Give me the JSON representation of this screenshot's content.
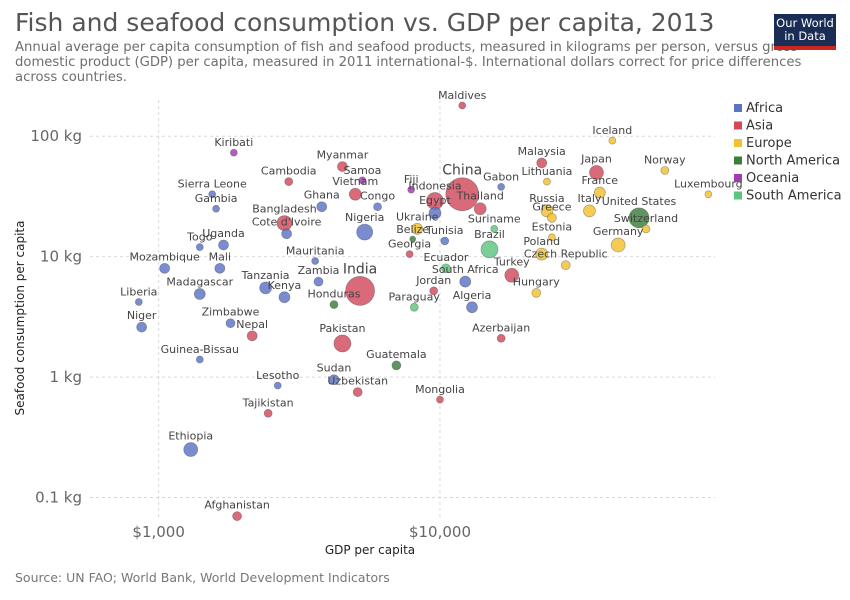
{
  "header": {
    "title": "Fish and seafood consumption vs. GDP per capita, 2013",
    "subtitle": "Annual average per capita consumption of fish and seafood products, measured in kilograms per person, versus gross domestic product (GDP) per capita, measured in 2011 international-$. International dollars correct for price differences across countries.",
    "logo_line1": "Our World",
    "logo_line2": "in Data"
  },
  "footer": {
    "source": "Source: UN FAO; World Bank, World Development Indicators"
  },
  "colors": {
    "Africa": "#5b73c4",
    "Asia": "#d1495b",
    "Europe": "#f2c12e",
    "North America": "#3c7d3e",
    "Oceania": "#a23bb0",
    "South America": "#5cc47d"
  },
  "chart_data": {
    "type": "scatter",
    "xlabel": "GDP per capita",
    "ylabel": "Seafood consumption per capita",
    "xscale": "log",
    "yscale": "log",
    "xlim": [
      570,
      95000
    ],
    "ylim": [
      0.065,
      200
    ],
    "xticks": [
      1000,
      10000
    ],
    "xtick_labels": [
      "$1,000",
      "$10,000"
    ],
    "yticks": [
      0.1,
      1,
      10,
      100
    ],
    "ytick_labels": [
      "0.1 kg",
      "1 kg",
      "10 kg",
      "100 kg"
    ],
    "grid": true,
    "legend_position": "right",
    "legend": [
      "Africa",
      "Asia",
      "Europe",
      "North America",
      "Oceania",
      "South America"
    ],
    "points": [
      {
        "name": "Maldives",
        "region": "Asia",
        "x": 12000,
        "y": 180,
        "size": 4
      },
      {
        "name": "Iceland",
        "region": "Europe",
        "x": 41000,
        "y": 92,
        "size": 4
      },
      {
        "name": "Kiribati",
        "region": "Oceania",
        "x": 1850,
        "y": 73,
        "size": 4
      },
      {
        "name": "Myanmar",
        "region": "Asia",
        "x": 4500,
        "y": 56,
        "size": 7
      },
      {
        "name": "Malaysia",
        "region": "Asia",
        "x": 23000,
        "y": 60,
        "size": 7
      },
      {
        "name": "Japan",
        "region": "Asia",
        "x": 36000,
        "y": 50,
        "size": 11
      },
      {
        "name": "Norway",
        "region": "Europe",
        "x": 63000,
        "y": 52,
        "size": 5
      },
      {
        "name": "Samoa",
        "region": "Oceania",
        "x": 5300,
        "y": 43,
        "size": 4
      },
      {
        "name": "Cambodia",
        "region": "Asia",
        "x": 2900,
        "y": 42,
        "size": 5
      },
      {
        "name": "Sierra Leone",
        "region": "Africa",
        "x": 1550,
        "y": 33,
        "size": 4
      },
      {
        "name": "Vietnam",
        "region": "Asia",
        "x": 5000,
        "y": 33,
        "size": 9
      },
      {
        "name": "Fiji",
        "region": "Oceania",
        "x": 7900,
        "y": 36,
        "size": 4
      },
      {
        "name": "Lithuania",
        "region": "Europe",
        "x": 24000,
        "y": 42,
        "size": 4
      },
      {
        "name": "Luxembourg",
        "region": "Europe",
        "x": 90000,
        "y": 33,
        "size": 4
      },
      {
        "name": "China",
        "region": "Asia",
        "x": 12000,
        "y": 33,
        "size": 30
      },
      {
        "name": "Gabon",
        "region": "Africa",
        "x": 16500,
        "y": 38,
        "size": 4
      },
      {
        "name": "France",
        "region": "Europe",
        "x": 37000,
        "y": 34,
        "size": 8
      },
      {
        "name": "Gambia",
        "region": "Africa",
        "x": 1600,
        "y": 25,
        "size": 4
      },
      {
        "name": "Ghana",
        "region": "Africa",
        "x": 3800,
        "y": 26,
        "size": 7
      },
      {
        "name": "Congo",
        "region": "Africa",
        "x": 6000,
        "y": 26,
        "size": 5
      },
      {
        "name": "Indonesia",
        "region": "Asia",
        "x": 9600,
        "y": 29,
        "size": 14
      },
      {
        "name": "Egypt",
        "region": "Africa",
        "x": 9600,
        "y": 23,
        "size": 9
      },
      {
        "name": "Thailand",
        "region": "Asia",
        "x": 13900,
        "y": 25,
        "size": 9
      },
      {
        "name": "Russia",
        "region": "Europe",
        "x": 24000,
        "y": 24,
        "size": 9
      },
      {
        "name": "Italy",
        "region": "Europe",
        "x": 34000,
        "y": 24,
        "size": 9
      },
      {
        "name": "United States",
        "region": "North America",
        "x": 51000,
        "y": 21,
        "size": 17
      },
      {
        "name": "Greece",
        "region": "Europe",
        "x": 25000,
        "y": 21,
        "size": 6
      },
      {
        "name": "Bangladesh",
        "region": "Asia",
        "x": 2800,
        "y": 19,
        "size": 12
      },
      {
        "name": "Nigeria",
        "region": "Africa",
        "x": 5400,
        "y": 16,
        "size": 13
      },
      {
        "name": "Ukraine",
        "region": "Europe",
        "x": 8300,
        "y": 17,
        "size": 8
      },
      {
        "name": "Suriname",
        "region": "South America",
        "x": 15600,
        "y": 17,
        "size": 4
      },
      {
        "name": "Switzerland",
        "region": "Europe",
        "x": 54000,
        "y": 17,
        "size": 5
      },
      {
        "name": "Cote d'Ivoire",
        "region": "Africa",
        "x": 2850,
        "y": 15.5,
        "size": 7
      },
      {
        "name": "Belize",
        "region": "North America",
        "x": 8000,
        "y": 14,
        "size": 3
      },
      {
        "name": "Tunisia",
        "region": "Africa",
        "x": 10400,
        "y": 13.5,
        "size": 5
      },
      {
        "name": "Estonia",
        "region": "Europe",
        "x": 25000,
        "y": 14.5,
        "size": 4
      },
      {
        "name": "Germany",
        "region": "Europe",
        "x": 43000,
        "y": 12.5,
        "size": 11
      },
      {
        "name": "Togo",
        "region": "Africa",
        "x": 1400,
        "y": 12,
        "size": 4
      },
      {
        "name": "Uganda",
        "region": "Africa",
        "x": 1700,
        "y": 12.5,
        "size": 7
      },
      {
        "name": "Brazil",
        "region": "South America",
        "x": 15000,
        "y": 11.5,
        "size": 14
      },
      {
        "name": "Poland",
        "region": "Europe",
        "x": 23000,
        "y": 10.5,
        "size": 9
      },
      {
        "name": "Georgia",
        "region": "Asia",
        "x": 7800,
        "y": 10.5,
        "size": 4
      },
      {
        "name": "Mauritania",
        "region": "Africa",
        "x": 3600,
        "y": 9.2,
        "size": 4
      },
      {
        "name": "Czech Republic",
        "region": "Europe",
        "x": 28000,
        "y": 8.5,
        "size": 6
      },
      {
        "name": "Mozambique",
        "region": "Africa",
        "x": 1050,
        "y": 8,
        "size": 7
      },
      {
        "name": "Mali",
        "region": "Africa",
        "x": 1650,
        "y": 8,
        "size": 7
      },
      {
        "name": "India",
        "region": "Asia",
        "x": 5200,
        "y": 5.2,
        "size": 26
      },
      {
        "name": "Ecuador",
        "region": "South America",
        "x": 10500,
        "y": 8,
        "size": 6
      },
      {
        "name": "South Africa",
        "region": "Africa",
        "x": 12300,
        "y": 6.2,
        "size": 8
      },
      {
        "name": "Turkey",
        "region": "Asia",
        "x": 18000,
        "y": 7,
        "size": 11
      },
      {
        "name": "Zambia",
        "region": "Africa",
        "x": 3700,
        "y": 6.2,
        "size": 6
      },
      {
        "name": "Tanzania",
        "region": "Africa",
        "x": 2400,
        "y": 5.5,
        "size": 9
      },
      {
        "name": "Madagascar",
        "region": "Africa",
        "x": 1400,
        "y": 4.9,
        "size": 8
      },
      {
        "name": "Kenya",
        "region": "Africa",
        "x": 2800,
        "y": 4.6,
        "size": 8
      },
      {
        "name": "Jordan",
        "region": "Asia",
        "x": 9500,
        "y": 5.2,
        "size": 5
      },
      {
        "name": "Hungary",
        "region": "Europe",
        "x": 22000,
        "y": 5,
        "size": 6
      },
      {
        "name": "Liberia",
        "region": "Africa",
        "x": 850,
        "y": 4.2,
        "size": 4
      },
      {
        "name": "Honduras",
        "region": "North America",
        "x": 4200,
        "y": 4,
        "size": 5
      },
      {
        "name": "Paraguay",
        "region": "South America",
        "x": 8100,
        "y": 3.8,
        "size": 5
      },
      {
        "name": "Algeria",
        "region": "Africa",
        "x": 13000,
        "y": 3.8,
        "size": 8
      },
      {
        "name": "Zimbabwe",
        "region": "Africa",
        "x": 1800,
        "y": 2.8,
        "size": 6
      },
      {
        "name": "Niger",
        "region": "Africa",
        "x": 870,
        "y": 2.6,
        "size": 7
      },
      {
        "name": "Nepal",
        "region": "Asia",
        "x": 2150,
        "y": 2.2,
        "size": 7
      },
      {
        "name": "Pakistan",
        "region": "Asia",
        "x": 4500,
        "y": 1.9,
        "size": 14
      },
      {
        "name": "Azerbaijan",
        "region": "Asia",
        "x": 16500,
        "y": 2.1,
        "size": 5
      },
      {
        "name": "Guinea-Bissau",
        "region": "Africa",
        "x": 1400,
        "y": 1.4,
        "size": 4
      },
      {
        "name": "Guatemala",
        "region": "North America",
        "x": 7000,
        "y": 1.25,
        "size": 6
      },
      {
        "name": "Sudan",
        "region": "Africa",
        "x": 4200,
        "y": 0.95,
        "size": 7
      },
      {
        "name": "Lesotho",
        "region": "Africa",
        "x": 2650,
        "y": 0.85,
        "size": 4
      },
      {
        "name": "Uzbekistan",
        "region": "Asia",
        "x": 5100,
        "y": 0.75,
        "size": 6
      },
      {
        "name": "Mongolia",
        "region": "Asia",
        "x": 10000,
        "y": 0.65,
        "size": 4
      },
      {
        "name": "Tajikistan",
        "region": "Asia",
        "x": 2450,
        "y": 0.5,
        "size": 5
      },
      {
        "name": "Ethiopia",
        "region": "Africa",
        "x": 1300,
        "y": 0.25,
        "size": 11
      },
      {
        "name": "Afghanistan",
        "region": "Asia",
        "x": 1900,
        "y": 0.07,
        "size": 6
      }
    ]
  }
}
